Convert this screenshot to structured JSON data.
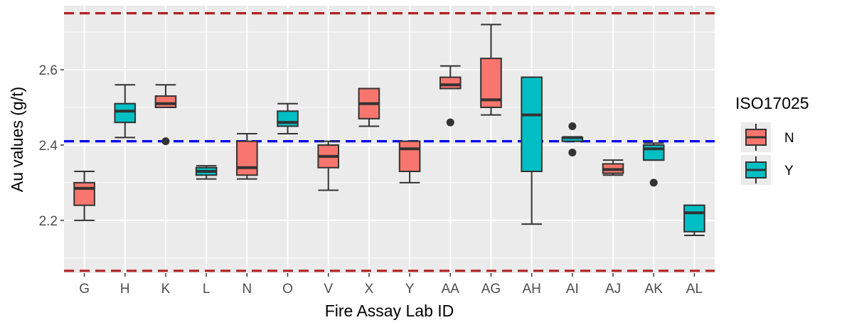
{
  "chart_data": {
    "type": "box",
    "xlabel": "Fire Assay Lab ID",
    "ylabel": "Au values (g/t)",
    "ylim": [
      2.06,
      2.77
    ],
    "yticks": [
      2.2,
      2.4,
      2.6
    ],
    "grid": true,
    "legend": {
      "title": "ISO17025",
      "position": "right",
      "entries": [
        {
          "label": "N",
          "color": "#F8766D"
        },
        {
          "label": "Y",
          "color": "#00BFC4"
        }
      ]
    },
    "reference_lines": [
      {
        "y": 2.75,
        "color": "#B22222",
        "style": "dashed"
      },
      {
        "y": 2.41,
        "color": "#0000EE",
        "style": "dashed"
      },
      {
        "y": 2.066,
        "color": "#B22222",
        "style": "dashed"
      }
    ],
    "categories": [
      "G",
      "H",
      "K",
      "L",
      "N",
      "O",
      "V",
      "X",
      "Y",
      "AA",
      "AG",
      "AH",
      "AI",
      "AJ",
      "AK",
      "AL"
    ],
    "boxes": [
      {
        "lab": "G",
        "iso": "N",
        "lower_whisker": 2.2,
        "q1": 2.24,
        "median": 2.285,
        "q3": 2.3,
        "upper_whisker": 2.33,
        "outliers": []
      },
      {
        "lab": "H",
        "iso": "Y",
        "lower_whisker": 2.42,
        "q1": 2.46,
        "median": 2.49,
        "q3": 2.51,
        "upper_whisker": 2.56,
        "outliers": []
      },
      {
        "lab": "K",
        "iso": "N",
        "lower_whisker": 2.5,
        "q1": 2.5,
        "median": 2.51,
        "q3": 2.53,
        "upper_whisker": 2.56,
        "outliers": [
          2.41
        ]
      },
      {
        "lab": "L",
        "iso": "Y",
        "lower_whisker": 2.31,
        "q1": 2.32,
        "median": 2.33,
        "q3": 2.34,
        "upper_whisker": 2.345,
        "outliers": []
      },
      {
        "lab": "N",
        "iso": "N",
        "lower_whisker": 2.31,
        "q1": 2.32,
        "median": 2.34,
        "q3": 2.41,
        "upper_whisker": 2.43,
        "outliers": []
      },
      {
        "lab": "O",
        "iso": "Y",
        "lower_whisker": 2.43,
        "q1": 2.45,
        "median": 2.46,
        "q3": 2.49,
        "upper_whisker": 2.51,
        "outliers": []
      },
      {
        "lab": "V",
        "iso": "N",
        "lower_whisker": 2.28,
        "q1": 2.34,
        "median": 2.37,
        "q3": 2.4,
        "upper_whisker": 2.41,
        "outliers": []
      },
      {
        "lab": "X",
        "iso": "N",
        "lower_whisker": 2.45,
        "q1": 2.47,
        "median": 2.51,
        "q3": 2.55,
        "upper_whisker": 2.55,
        "outliers": []
      },
      {
        "lab": "Y",
        "iso": "N",
        "lower_whisker": 2.3,
        "q1": 2.33,
        "median": 2.39,
        "q3": 2.41,
        "upper_whisker": 2.41,
        "outliers": []
      },
      {
        "lab": "AA",
        "iso": "N",
        "lower_whisker": 2.55,
        "q1": 2.55,
        "median": 2.56,
        "q3": 2.58,
        "upper_whisker": 2.61,
        "outliers": [
          2.46
        ]
      },
      {
        "lab": "AG",
        "iso": "N",
        "lower_whisker": 2.48,
        "q1": 2.5,
        "median": 2.52,
        "q3": 2.63,
        "upper_whisker": 2.72,
        "outliers": []
      },
      {
        "lab": "AH",
        "iso": "Y",
        "lower_whisker": 2.19,
        "q1": 2.33,
        "median": 2.48,
        "q3": 2.58,
        "upper_whisker": 2.58,
        "outliers": []
      },
      {
        "lab": "AI",
        "iso": "Y",
        "lower_whisker": 2.41,
        "q1": 2.41,
        "median": 2.42,
        "q3": 2.42,
        "upper_whisker": 2.42,
        "outliers": [
          2.45,
          2.38
        ]
      },
      {
        "lab": "AJ",
        "iso": "N",
        "lower_whisker": 2.32,
        "q1": 2.325,
        "median": 2.335,
        "q3": 2.35,
        "upper_whisker": 2.36,
        "outliers": []
      },
      {
        "lab": "AK",
        "iso": "Y",
        "lower_whisker": 2.36,
        "q1": 2.36,
        "median": 2.39,
        "q3": 2.4,
        "upper_whisker": 2.405,
        "outliers": [
          2.3
        ]
      },
      {
        "lab": "AL",
        "iso": "Y",
        "lower_whisker": 2.16,
        "q1": 2.17,
        "median": 2.22,
        "q3": 2.24,
        "upper_whisker": 2.24,
        "outliers": []
      }
    ]
  }
}
